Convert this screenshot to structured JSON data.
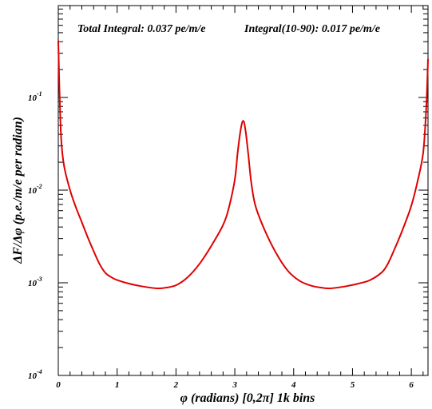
{
  "chart_data": {
    "type": "line",
    "title": "",
    "annotations": {
      "total_integral": "Total Integral: 0.037 pe/m/e",
      "integral_range": "Integral(10-90): 0.017 pe/m/e"
    },
    "xlabel": "φ (radians) [0,2π] 1k bins",
    "ylabel": "ΔF/Δφ (p.e./m/e per radian)",
    "xlim": [
      0,
      6.2832
    ],
    "ylim": [
      0.0001,
      0.5
    ],
    "yscale": "log",
    "grid": false,
    "x_ticks": [
      {
        "value": 0,
        "label": "0"
      },
      {
        "value": 1,
        "label": "1"
      },
      {
        "value": 2,
        "label": "2"
      },
      {
        "value": 3,
        "label": "3"
      },
      {
        "value": 4,
        "label": "4"
      },
      {
        "value": 5,
        "label": "5"
      },
      {
        "value": 6,
        "label": "6"
      }
    ],
    "y_ticks": [
      {
        "value": 0.0001,
        "base": "10",
        "exp": "-4"
      },
      {
        "value": 0.001,
        "base": "10",
        "exp": "-3"
      },
      {
        "value": 0.01,
        "base": "10",
        "exp": "-2"
      },
      {
        "value": 0.1,
        "base": "10",
        "exp": "-1"
      }
    ],
    "series": [
      {
        "color": "#e00000",
        "x": [
          0.0,
          0.02,
          0.05,
          0.1,
          0.2,
          0.3,
          0.4,
          0.5,
          0.6,
          0.7,
          0.8,
          0.9,
          1.0,
          1.2,
          1.4,
          1.6,
          1.7,
          1.8,
          2.0,
          2.2,
          2.4,
          2.6,
          2.8,
          2.9,
          3.0,
          3.05,
          3.1,
          3.142,
          3.18,
          3.23,
          3.28,
          3.35,
          3.5,
          3.7,
          3.9,
          4.1,
          4.3,
          4.5,
          4.6,
          4.7,
          4.9,
          5.1,
          5.3,
          5.5,
          5.6,
          5.7,
          5.8,
          5.9,
          6.0,
          6.1,
          6.2,
          6.25,
          6.27,
          6.2832
        ],
        "y": [
          0.41,
          0.12,
          0.035,
          0.018,
          0.01,
          0.0065,
          0.0045,
          0.0031,
          0.0022,
          0.0016,
          0.00128,
          0.00115,
          0.00107,
          0.00098,
          0.00092,
          0.00088,
          0.00087,
          0.00088,
          0.00094,
          0.00115,
          0.0016,
          0.0025,
          0.0042,
          0.0065,
          0.013,
          0.026,
          0.045,
          0.056,
          0.045,
          0.024,
          0.012,
          0.0068,
          0.0038,
          0.0021,
          0.00135,
          0.00105,
          0.00093,
          0.00088,
          0.00087,
          0.00088,
          0.00092,
          0.00098,
          0.00107,
          0.0013,
          0.0016,
          0.0022,
          0.0031,
          0.0045,
          0.0068,
          0.012,
          0.025,
          0.07,
          0.14,
          0.26
        ]
      }
    ]
  }
}
